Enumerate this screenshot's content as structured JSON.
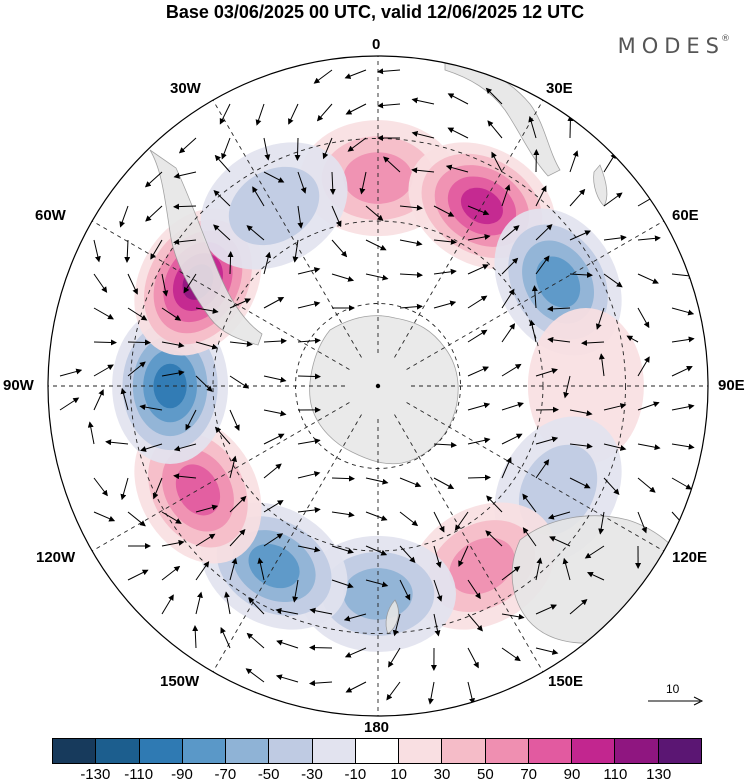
{
  "header": {
    "title": "Base 03/06/2025 00 UTC, valid 12/06/2025 12 UTC",
    "brand": "MODES",
    "brand_mark": "®"
  },
  "map": {
    "projection": "south-polar-stereographic",
    "longitude_labels": {
      "top": "0",
      "top_right": "30E",
      "upper_right": "60E",
      "right": "90E",
      "lower_right": "120E",
      "bottom_right": "150E",
      "bottom": "180",
      "bottom_left": "150W",
      "lower_left": "120W",
      "left": "90W",
      "upper_left": "60W",
      "top_left": "30W"
    },
    "reference_vector": "10",
    "anomaly_centers": [
      {
        "lon": "0",
        "sign": "positive",
        "level": 70
      },
      {
        "lon": "30E",
        "sign": "positive",
        "level": 110
      },
      {
        "lon": "60E",
        "sign": "negative",
        "level": -90
      },
      {
        "lon": "90E",
        "sign": "positive",
        "level": 30
      },
      {
        "lon": "120E",
        "sign": "negative",
        "level": -50
      },
      {
        "lon": "150E",
        "sign": "positive",
        "level": 70
      },
      {
        "lon": "180",
        "sign": "negative",
        "level": -70
      },
      {
        "lon": "150W",
        "sign": "negative",
        "level": -90
      },
      {
        "lon": "120W",
        "sign": "positive",
        "level": 90
      },
      {
        "lon": "90W",
        "sign": "negative",
        "level": -110
      },
      {
        "lon": "60W",
        "sign": "positive",
        "level": 130
      },
      {
        "lon": "30W",
        "sign": "negative",
        "level": -50
      }
    ]
  },
  "colorbar": {
    "colors": [
      "#173a5c",
      "#1c5e8e",
      "#2f7ab3",
      "#5a98c8",
      "#8fb3d6",
      "#bfcbe3",
      "#e2e3ef",
      "#ffffff",
      "#f9dfe2",
      "#f5bcc8",
      "#ef8fb1",
      "#e25aa0",
      "#c2268f",
      "#8f1680",
      "#5b1673"
    ],
    "labels": [
      "-130",
      "-110",
      "-90",
      "-70",
      "-50",
      "-30",
      "-10",
      "10",
      "30",
      "50",
      "70",
      "90",
      "110",
      "130"
    ]
  }
}
